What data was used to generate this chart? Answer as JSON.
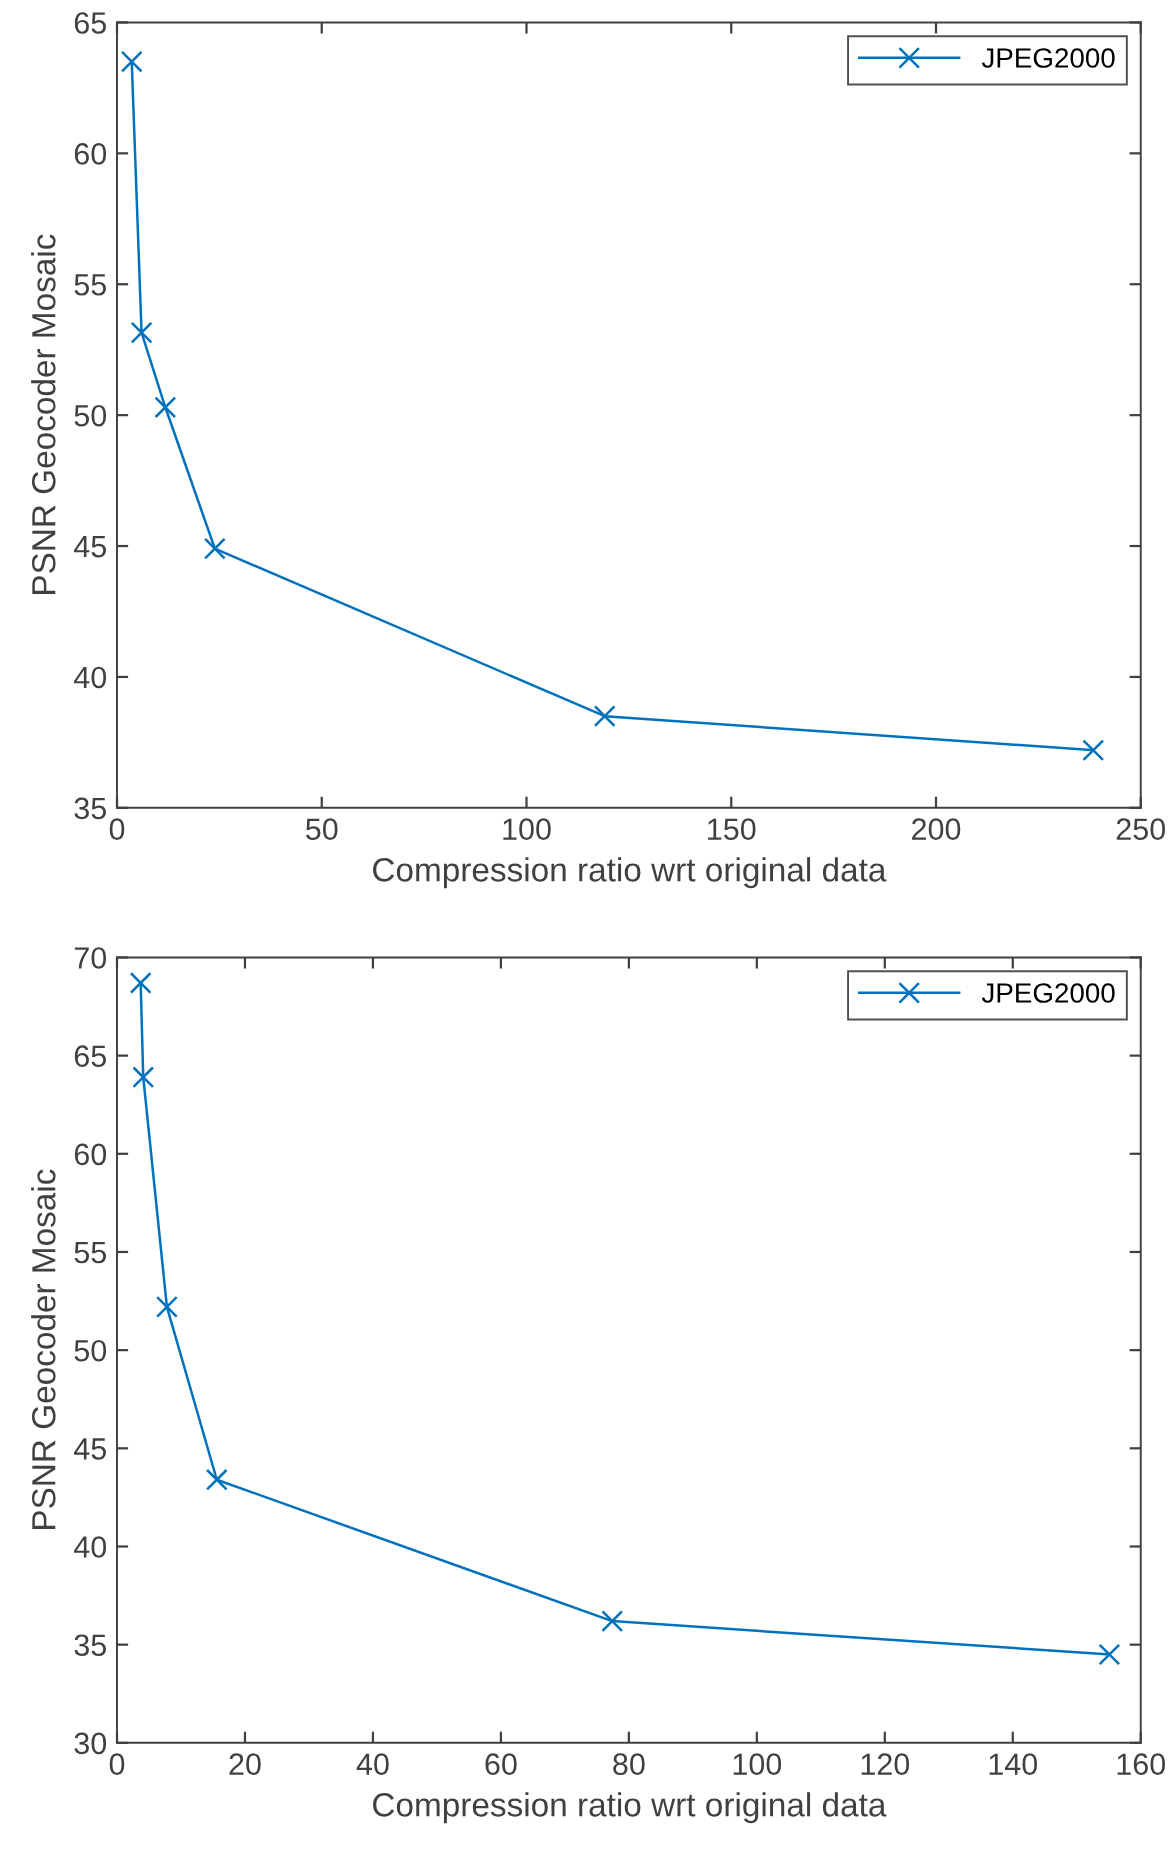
{
  "chart_data": [
    {
      "type": "line",
      "xlabel": "Compression ratio wrt original data",
      "ylabel": "PSNR Geocoder Mosaic",
      "xlim": [
        0,
        250
      ],
      "xticks": [
        0,
        50,
        100,
        150,
        200,
        250
      ],
      "ylim": [
        35,
        65
      ],
      "yticks": [
        35,
        40,
        45,
        50,
        55,
        60,
        65
      ],
      "grid": false,
      "legend": "top right",
      "marker": "cross",
      "line_style": "solid",
      "series": [
        {
          "name": "JPEG2000",
          "color": "#0072bd",
          "x": [
            3.6,
            6.0,
            11.8,
            23.9,
            119.1,
            238.4
          ],
          "values": [
            63.5,
            53.15,
            50.3,
            44.9,
            38.5,
            37.2
          ]
        }
      ]
    },
    {
      "type": "line",
      "xlabel": "Compression ratio wrt original data",
      "ylabel": "PSNR Geocoder Mosaic",
      "xlim": [
        0,
        160
      ],
      "xticks": [
        0,
        20,
        40,
        60,
        80,
        100,
        120,
        140,
        160
      ],
      "ylim": [
        30,
        70
      ],
      "yticks": [
        30,
        35,
        40,
        45,
        50,
        55,
        60,
        65,
        70
      ],
      "grid": false,
      "legend": "top right",
      "marker": "cross",
      "line_style": "solid",
      "series": [
        {
          "name": "JPEG2000",
          "color": "#0072bd",
          "x": [
            3.7,
            4.1,
            7.8,
            15.6,
            77.4,
            155.1
          ],
          "values": [
            68.7,
            63.9,
            52.2,
            43.4,
            36.2,
            34.5
          ]
        }
      ]
    }
  ]
}
